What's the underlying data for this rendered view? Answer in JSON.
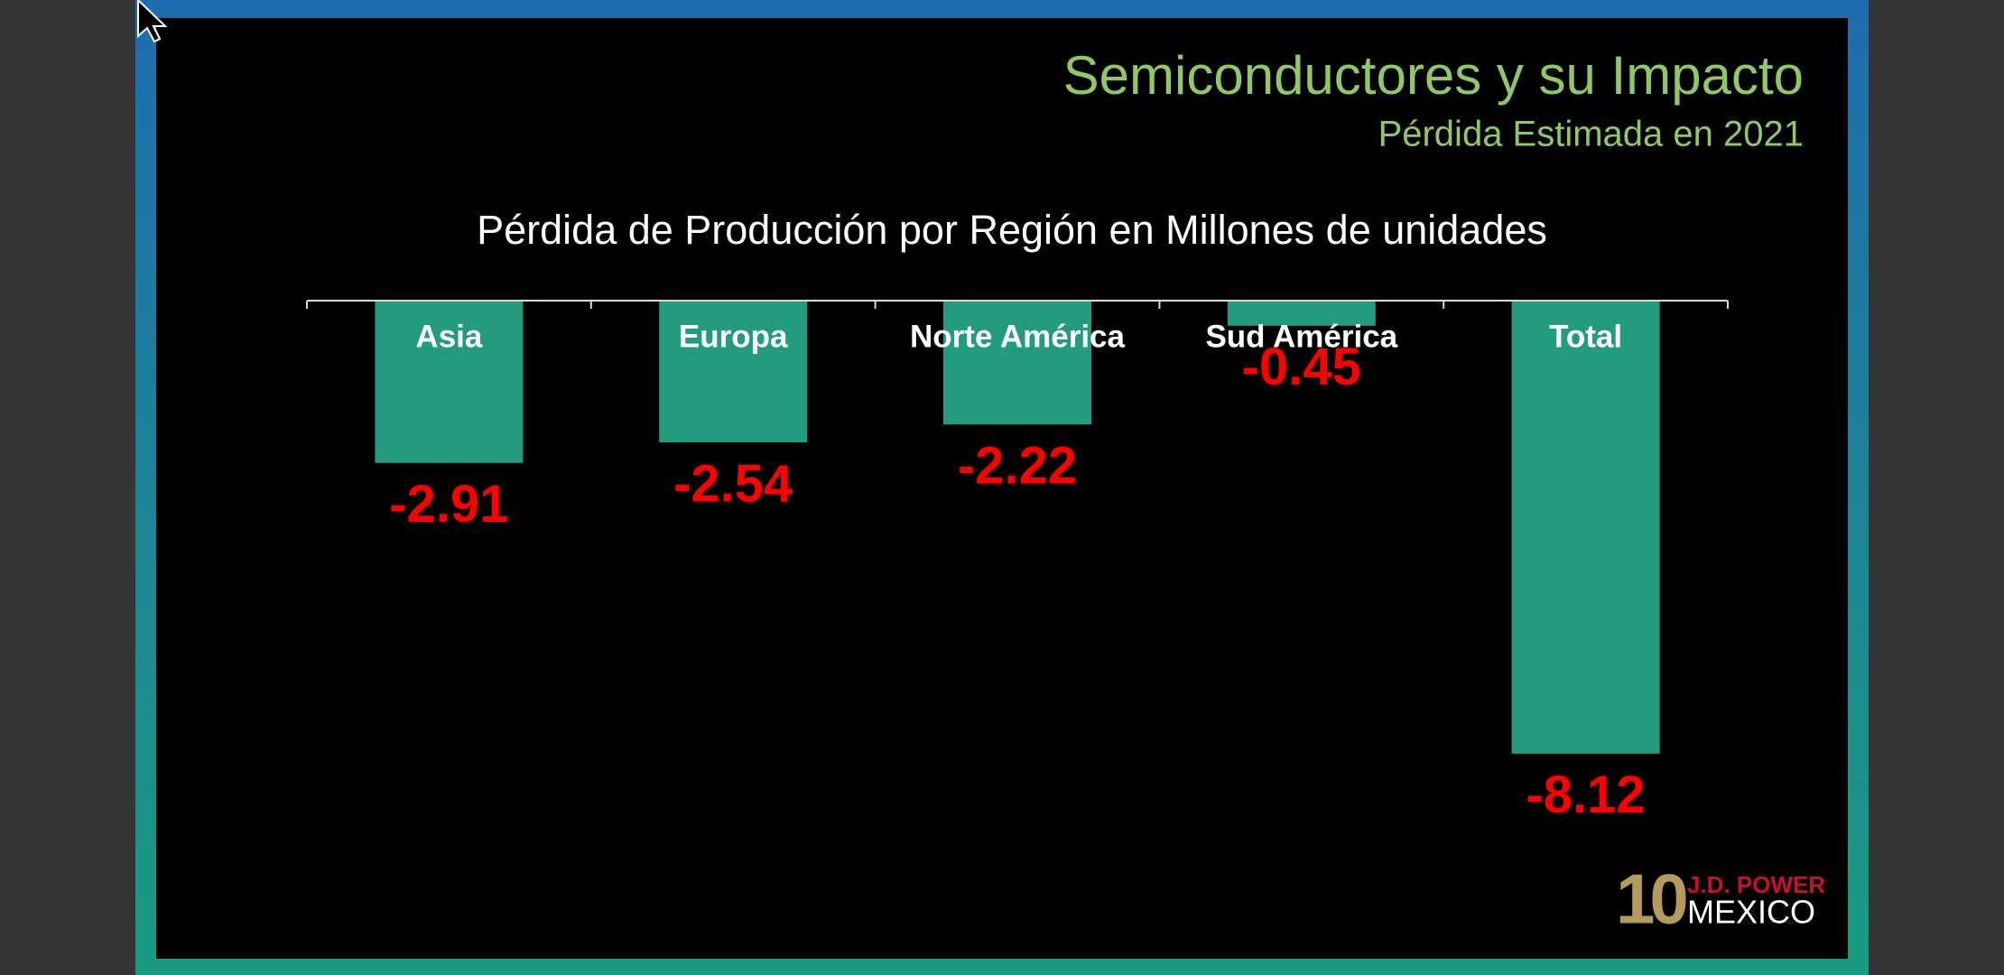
{
  "chart_data": {
    "type": "bar",
    "title": "Semiconductores y su Impacto",
    "subtitle": "Pérdida Estimada en 2021",
    "chart_title": "Pérdida de Producción por Región  en Millones de unidades",
    "categories": [
      "Asia",
      "Europa",
      "Norte América",
      "Sud América",
      "Total"
    ],
    "values": [
      -2.91,
      -2.54,
      -2.22,
      -0.45,
      -8.12
    ],
    "color": "#229b7e",
    "value_label_color": "#ff0000"
  },
  "logo": {
    "number": "10",
    "brand": "J.D. POWER",
    "country": "MEXICO"
  }
}
